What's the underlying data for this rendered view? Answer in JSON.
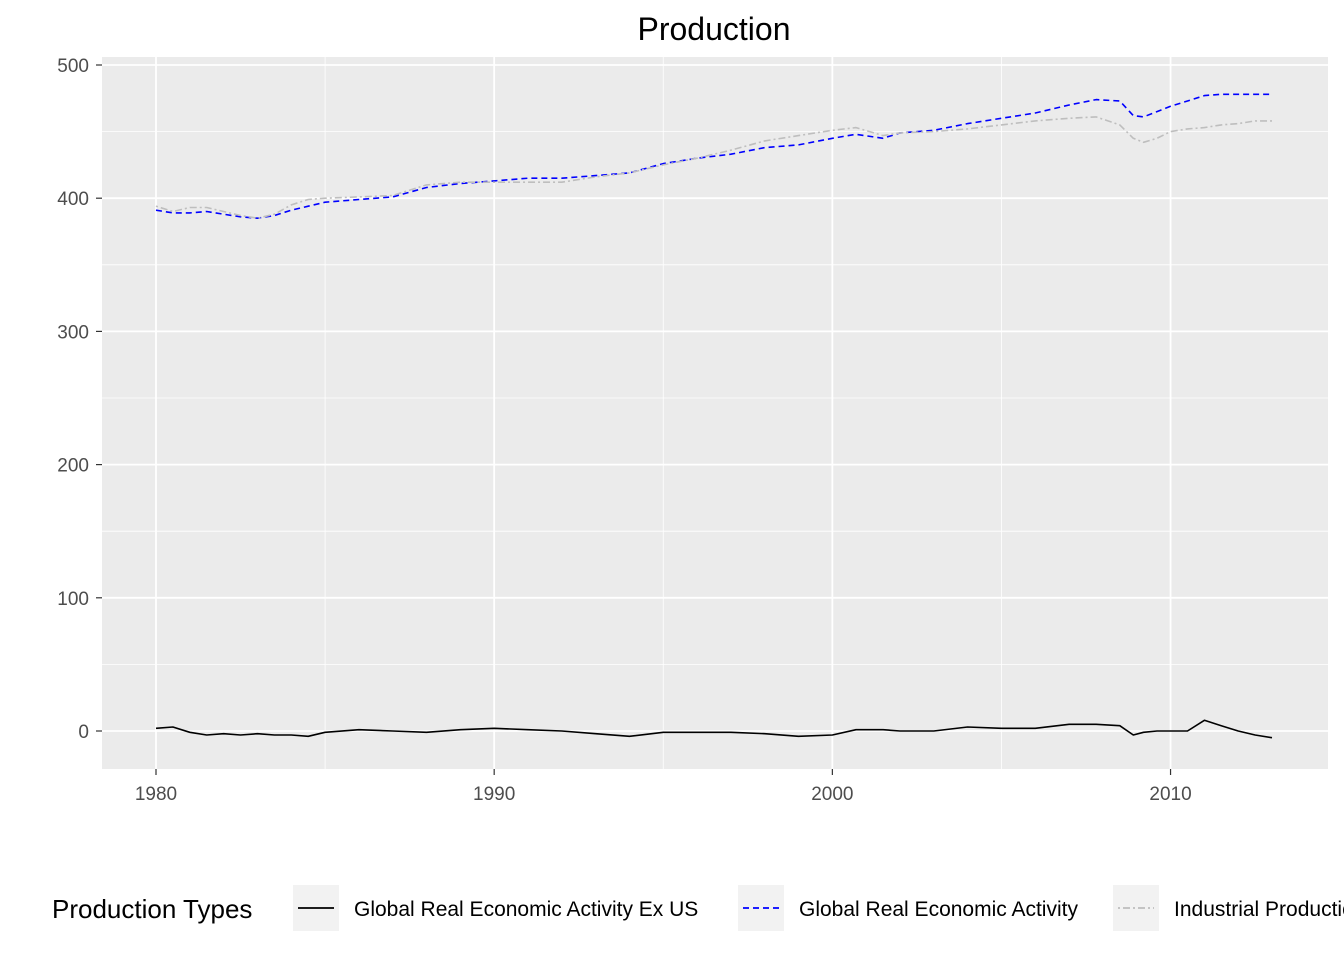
{
  "chart_data": {
    "type": "line",
    "title": "Production",
    "xlabel": "",
    "ylabel": "",
    "xlim": [
      1980,
      2013
    ],
    "ylim": [
      -27,
      505
    ],
    "x_ticks": [
      1980,
      1990,
      2000,
      2010
    ],
    "y_ticks": [
      0,
      100,
      200,
      300,
      400,
      500
    ],
    "grid": true,
    "legend": {
      "position": "bottom",
      "title": "Production Types",
      "entries": [
        {
          "label": "Global Real Economic Activity Ex US",
          "color": "#000000",
          "dash": "solid"
        },
        {
          "label": "Global Real Economic Activity",
          "color": "#0000ff",
          "dash": "dashed"
        },
        {
          "label": "Industrial Production",
          "color": "#bebebe",
          "dash": "dotdash"
        }
      ]
    },
    "x": [
      1980,
      1980.5,
      1981,
      1981.5,
      1982,
      1982.5,
      1983,
      1983.5,
      1984,
      1984.5,
      1985,
      1986,
      1987,
      1988,
      1989,
      1990,
      1991,
      1992,
      1993,
      1994,
      1995,
      1996,
      1997,
      1998,
      1999,
      2000,
      2000.7,
      2001.5,
      2002,
      2003,
      2004,
      2005,
      2006,
      2007,
      2007.8,
      2008.5,
      2008.9,
      2009.2,
      2009.6,
      2010,
      2010.5,
      2011,
      2011.5,
      2012,
      2012.5,
      2013
    ],
    "series": [
      {
        "name": "Global Real Economic Activity Ex US",
        "color": "#000000",
        "dash": "solid",
        "values": [
          2,
          3,
          -1,
          -3,
          -2,
          -3,
          -2,
          -3,
          -3,
          -4,
          -1,
          1,
          0,
          -1,
          1,
          2,
          1,
          0,
          -2,
          -4,
          -1,
          -1,
          -1,
          -2,
          -4,
          -3,
          1,
          1,
          0,
          0,
          3,
          2,
          2,
          5,
          5,
          4,
          -3,
          -1,
          0,
          0,
          0,
          8,
          4,
          0,
          -3,
          -5
        ]
      },
      {
        "name": "Global Real Economic Activity",
        "color": "#0000ff",
        "dash": "dashed",
        "values": [
          391,
          389,
          389,
          390,
          388,
          386,
          385,
          387,
          391,
          394,
          397,
          399,
          401,
          408,
          411,
          413,
          415,
          415,
          417,
          419,
          426,
          430,
          433,
          438,
          440,
          445,
          448,
          445,
          449,
          451,
          456,
          460,
          464,
          470,
          474,
          473,
          462,
          461,
          465,
          469,
          473,
          477,
          478,
          478,
          478,
          478
        ]
      },
      {
        "name": "Industrial Production",
        "color": "#bebebe",
        "dash": "dotdash",
        "values": [
          394,
          390,
          393,
          393,
          390,
          387,
          385,
          388,
          395,
          399,
          400,
          401,
          402,
          410,
          412,
          412,
          412,
          412,
          416,
          419,
          425,
          430,
          436,
          443,
          447,
          451,
          453,
          447,
          449,
          450,
          452,
          455,
          458,
          460,
          461,
          455,
          445,
          442,
          445,
          450,
          452,
          453,
          455,
          456,
          458,
          458
        ]
      }
    ]
  }
}
